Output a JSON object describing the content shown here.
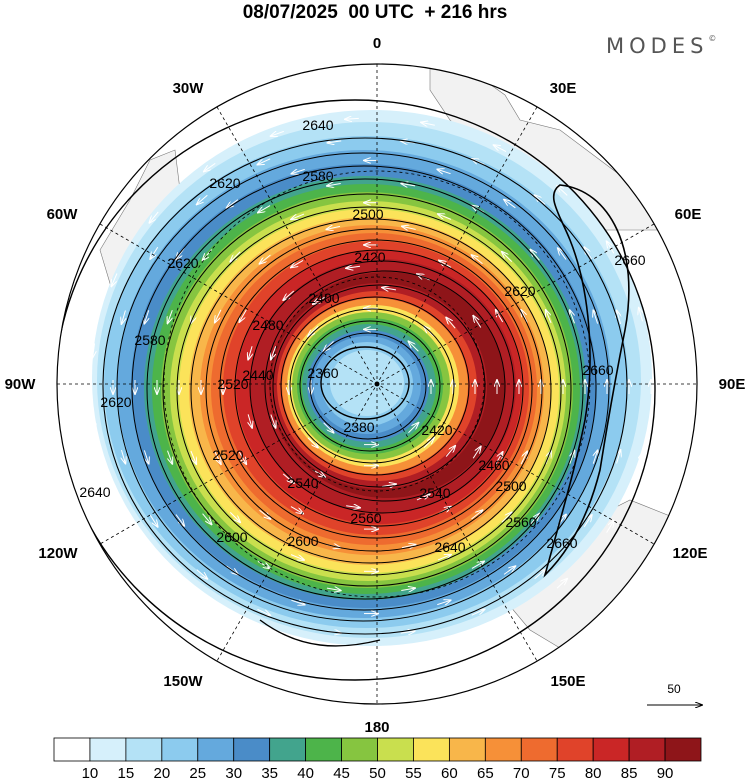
{
  "title": "08/07/2025  00 UTC  + 216 hrs",
  "brand": "MODES",
  "brand_mark": "©",
  "longitude_labels": {
    "lon_0": "0",
    "lon_30e": "30E",
    "lon_60e": "60E",
    "lon_90e": "90E",
    "lon_120e": "120E",
    "lon_150e": "150E",
    "lon_180": "180",
    "lon_150w": "150W",
    "lon_120w": "120W",
    "lon_90w": "90W",
    "lon_60w": "60W",
    "lon_30w": "30W"
  },
  "contour_labels": [
    "2640",
    "2620",
    "2580",
    "2500",
    "2420",
    "2400",
    "2360",
    "2380",
    "2420",
    "2460",
    "2500",
    "2540",
    "2560",
    "2600",
    "2600",
    "2620",
    "2640",
    "2640",
    "2660",
    "2660",
    "2660",
    "2620",
    "2580",
    "2520",
    "2440",
    "2480",
    "2520",
    "2620",
    "2540",
    "2560"
  ],
  "reference_vector": "50",
  "colorbar": {
    "colors": [
      "#ffffff",
      "#d6f0fb",
      "#b4e2f6",
      "#8ccbee",
      "#64a9dd",
      "#4a8cc8",
      "#42a48d",
      "#4db44a",
      "#86c540",
      "#c9df4e",
      "#fbe35a",
      "#f8b64a",
      "#f69038",
      "#ee6b2f",
      "#e0432a",
      "#ca2626",
      "#b01e24",
      "#8e1519"
    ],
    "ticks": [
      "10",
      "15",
      "20",
      "25",
      "30",
      "35",
      "40",
      "45",
      "50",
      "55",
      "60",
      "65",
      "70",
      "75",
      "80",
      "85",
      "90"
    ]
  },
  "wind_rings": [
    {
      "color": "#d6f0fb",
      "rx": 280,
      "ry": 268,
      "dx": -5,
      "dy": -6
    },
    {
      "color": "#b4e2f6",
      "rx": 272,
      "ry": 258,
      "dx": -8,
      "dy": -4
    },
    {
      "color": "#8ccbee",
      "rx": 262,
      "ry": 246,
      "dx": -11,
      "dy": -2
    },
    {
      "color": "#64a9dd",
      "rx": 247,
      "ry": 234,
      "dx": -13,
      "dy": 0
    },
    {
      "color": "#4a8cc8",
      "rx": 233,
      "ry": 222,
      "dx": -13,
      "dy": 2
    },
    {
      "color": "#42a48d",
      "rx": 221,
      "ry": 212,
      "dx": -12,
      "dy": 4
    },
    {
      "color": "#4db44a",
      "rx": 214,
      "ry": 205,
      "dx": -11,
      "dy": 5
    },
    {
      "color": "#86c540",
      "rx": 206,
      "ry": 198,
      "dx": -10,
      "dy": 6
    },
    {
      "color": "#c9df4e",
      "rx": 198,
      "ry": 190,
      "dx": -9,
      "dy": 7
    },
    {
      "color": "#fbe35a",
      "rx": 190,
      "ry": 182,
      "dx": -8,
      "dy": 7
    },
    {
      "color": "#f8b64a",
      "rx": 181,
      "ry": 174,
      "dx": -7,
      "dy": 7
    },
    {
      "color": "#f69038",
      "rx": 172,
      "ry": 165,
      "dx": -5,
      "dy": 6
    },
    {
      "color": "#ee6b2f",
      "rx": 163,
      "ry": 156,
      "dx": -3,
      "dy": 5
    },
    {
      "color": "#e0432a",
      "rx": 153,
      "ry": 147,
      "dx": -1,
      "dy": 4
    },
    {
      "color": "#ca2626",
      "rx": 143,
      "ry": 137,
      "dx": 2,
      "dy": 3
    },
    {
      "color": "#b01e24",
      "rx": 133,
      "ry": 127,
      "dx": 6,
      "dy": 2
    },
    {
      "color": "#8e1519",
      "rx": 118,
      "ry": 113,
      "dx": 10,
      "dy": 1
    },
    {
      "color": "#b01e24",
      "rx": 108,
      "ry": 103,
      "dx": 2,
      "dy": 2
    },
    {
      "color": "#e0432a",
      "rx": 100,
      "ry": 95,
      "dx": 0,
      "dy": 2
    },
    {
      "color": "#f69038",
      "rx": 93,
      "ry": 88,
      "dx": -2,
      "dy": 2
    },
    {
      "color": "#fbe35a",
      "rx": 86,
      "ry": 81,
      "dx": -4,
      "dy": 2
    },
    {
      "color": "#86c540",
      "rx": 79,
      "ry": 74,
      "dx": -6,
      "dy": 2
    },
    {
      "color": "#4db44a",
      "rx": 73,
      "ry": 68,
      "dx": -7,
      "dy": 2
    },
    {
      "color": "#42a48d",
      "rx": 67,
      "ry": 62,
      "dx": -8,
      "dy": 2
    },
    {
      "color": "#4a8cc8",
      "rx": 61,
      "ry": 56,
      "dx": -9,
      "dy": 2
    },
    {
      "color": "#64a9dd",
      "rx": 54,
      "ry": 49,
      "dx": -10,
      "dy": 1
    },
    {
      "color": "#8ccbee",
      "rx": 46,
      "ry": 42,
      "dx": -10,
      "dy": 0
    },
    {
      "color": "#b4e2f6",
      "rx": 37,
      "ry": 33,
      "dx": -10,
      "dy": -1
    }
  ]
}
